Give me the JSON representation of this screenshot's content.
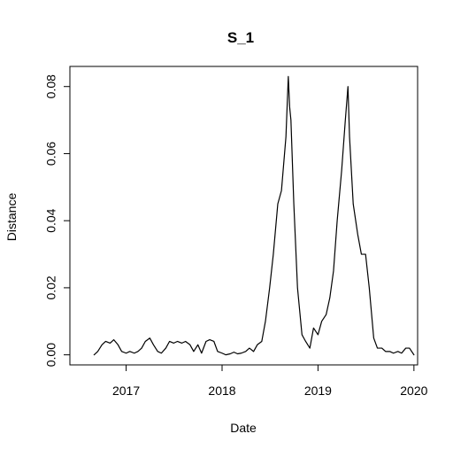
{
  "chart_data": {
    "type": "line",
    "title": "S_1",
    "xlabel": "Date",
    "ylabel": "Distance",
    "x_ticks": [
      "2017",
      "2018",
      "2019",
      "2020"
    ],
    "y_ticks": [
      "0.00",
      "0.02",
      "0.04",
      "0.06",
      "0.08"
    ],
    "xlim": [
      "2016-06-01",
      "2020-01-15"
    ],
    "ylim": [
      -0.003,
      0.086
    ],
    "grid": false,
    "legend": "none",
    "line_color": "#000000",
    "series": [
      {
        "x": [
          "2016-09-01",
          "2016-09-15",
          "2016-10-01",
          "2016-10-15",
          "2016-11-01",
          "2016-11-15",
          "2016-12-01",
          "2016-12-15",
          "2017-01-01",
          "2017-01-15",
          "2017-02-01",
          "2017-02-15",
          "2017-03-01",
          "2017-03-15",
          "2017-04-01",
          "2017-04-15",
          "2017-05-01",
          "2017-05-15",
          "2017-06-01",
          "2017-06-15",
          "2017-07-01",
          "2017-07-15",
          "2017-08-01",
          "2017-08-15",
          "2017-09-01",
          "2017-09-15",
          "2017-10-01",
          "2017-10-15",
          "2017-11-01",
          "2017-11-15",
          "2017-12-01",
          "2017-12-15",
          "2018-01-01",
          "2018-01-15",
          "2018-02-01",
          "2018-02-15",
          "2018-03-01",
          "2018-03-15",
          "2018-04-01",
          "2018-04-15",
          "2018-05-01",
          "2018-05-15",
          "2018-06-01",
          "2018-06-15",
          "2018-07-01",
          "2018-07-15",
          "2018-08-01",
          "2018-08-15",
          "2018-09-01",
          "2018-09-10",
          "2018-09-15",
          "2018-09-20",
          "2018-10-01",
          "2018-10-15",
          "2018-11-01",
          "2018-11-15",
          "2018-12-01",
          "2018-12-15",
          "2019-01-01",
          "2019-01-15",
          "2019-02-01",
          "2019-02-15",
          "2019-03-01",
          "2019-03-15",
          "2019-04-01",
          "2019-04-15",
          "2019-04-25",
          "2019-05-01",
          "2019-05-15",
          "2019-06-01",
          "2019-06-15",
          "2019-07-01",
          "2019-07-15",
          "2019-08-01",
          "2019-08-15",
          "2019-09-01",
          "2019-09-15",
          "2019-10-01",
          "2019-10-15",
          "2019-11-01",
          "2019-11-15",
          "2019-12-01",
          "2019-12-15",
          "2020-01-01"
        ],
        "values": [
          0.0,
          0.001,
          0.003,
          0.004,
          0.0035,
          0.0045,
          0.003,
          0.001,
          0.0005,
          0.001,
          0.0005,
          0.001,
          0.002,
          0.004,
          0.005,
          0.003,
          0.001,
          0.0005,
          0.002,
          0.004,
          0.0035,
          0.004,
          0.0035,
          0.004,
          0.003,
          0.001,
          0.003,
          0.0005,
          0.004,
          0.0045,
          0.004,
          0.001,
          0.0005,
          0.0,
          0.0003,
          0.0008,
          0.0003,
          0.0005,
          0.001,
          0.002,
          0.001,
          0.003,
          0.004,
          0.01,
          0.02,
          0.03,
          0.045,
          0.049,
          0.065,
          0.083,
          0.074,
          0.07,
          0.045,
          0.02,
          0.006,
          0.004,
          0.002,
          0.008,
          0.006,
          0.01,
          0.012,
          0.017,
          0.025,
          0.04,
          0.055,
          0.07,
          0.08,
          0.065,
          0.045,
          0.036,
          0.03,
          0.03,
          0.02,
          0.005,
          0.002,
          0.002,
          0.001,
          0.001,
          0.0005,
          0.001,
          0.0005,
          0.002,
          0.002,
          0.0
        ]
      }
    ]
  }
}
